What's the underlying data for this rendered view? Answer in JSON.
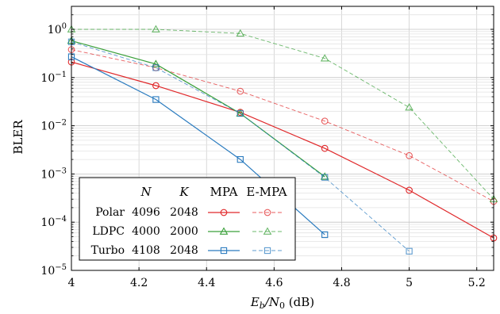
{
  "chart_data": {
    "type": "line",
    "xlabel_main": "E",
    "xlabel_sub_b": "b",
    "xlabel_slash": "/N",
    "xlabel_sub_0": "0",
    "xlabel_unit": " (dB)",
    "ylabel": "BLER",
    "xlim": [
      4,
      5.25
    ],
    "ylim": [
      1e-05,
      3
    ],
    "yscale": "log",
    "grid": true,
    "legend_placement": "bottom-left",
    "x_ticks": [
      "4",
      "4.2",
      "4.4",
      "4.6",
      "4.8",
      "5",
      "5.2"
    ],
    "x_tick_values": [
      4,
      4.2,
      4.4,
      4.6,
      4.8,
      5,
      5.2
    ],
    "y_ticks": [
      {
        "base": "10",
        "exp": "0",
        "value": 1
      },
      {
        "base": "10",
        "exp": "−1",
        "value": 0.1
      },
      {
        "base": "10",
        "exp": "−2",
        "value": 0.01
      },
      {
        "base": "10",
        "exp": "−3",
        "value": 0.001
      },
      {
        "base": "10",
        "exp": "−4",
        "value": 0.0001
      },
      {
        "base": "10",
        "exp": "−5",
        "value": 1e-05
      }
    ],
    "legend": {
      "headers": [
        "N",
        "K",
        "MPA",
        "E-MPA"
      ],
      "rows": [
        {
          "name": "Polar",
          "N": "4096",
          "K": "2048"
        },
        {
          "name": "LDPC",
          "N": "4000",
          "K": "2000"
        },
        {
          "name": "Turbo",
          "N": "4108",
          "K": "2048"
        }
      ]
    },
    "series": [
      {
        "code": "Polar",
        "decoder": "MPA",
        "color": "#e0282a",
        "marker": "circle",
        "dashed": false,
        "x": [
          4,
          4.25,
          4.5,
          4.75,
          5,
          5.25
        ],
        "y": [
          0.21,
          0.068,
          0.019,
          0.0034,
          0.00046,
          4.7e-05
        ]
      },
      {
        "code": "Polar",
        "decoder": "E-MPA",
        "color": "#e0282a",
        "marker": "circle",
        "dashed": true,
        "x": [
          4,
          4.25,
          4.5,
          4.75,
          5,
          5.25
        ],
        "y": [
          0.38,
          0.16,
          0.052,
          0.0125,
          0.0024,
          0.00027
        ]
      },
      {
        "code": "LDPC",
        "decoder": "MPA",
        "color": "#3aa03a",
        "marker": "triangle",
        "dashed": false,
        "x": [
          4,
          4.25,
          4.5,
          4.75
        ],
        "y": [
          0.58,
          0.19,
          0.018,
          0.00088
        ]
      },
      {
        "code": "LDPC",
        "decoder": "E-MPA",
        "color": "#3aa03a",
        "marker": "triangle",
        "dashed": true,
        "x": [
          4,
          4.25,
          4.5,
          4.75,
          5,
          5.25
        ],
        "y": [
          1.0,
          1.0,
          0.82,
          0.25,
          0.024,
          0.0003
        ]
      },
      {
        "code": "Turbo",
        "decoder": "MPA",
        "color": "#2a7bbf",
        "marker": "square",
        "dashed": false,
        "x": [
          4,
          4.25,
          4.5,
          4.75
        ],
        "y": [
          0.27,
          0.035,
          0.002,
          5.5e-05
        ]
      },
      {
        "code": "Turbo",
        "decoder": "E-MPA",
        "color": "#2a7bbf",
        "marker": "square",
        "dashed": true,
        "x": [
          4,
          4.25,
          4.5,
          4.75,
          5
        ],
        "y": [
          0.55,
          0.16,
          0.018,
          0.00085,
          2.5e-05
        ]
      }
    ]
  }
}
